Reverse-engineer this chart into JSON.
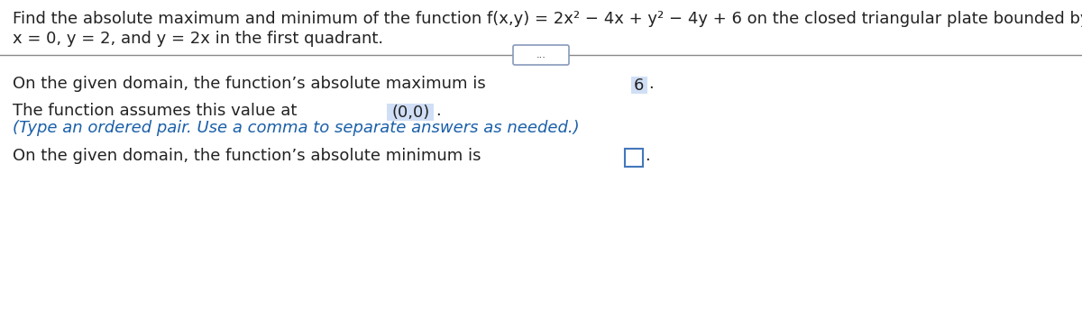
{
  "title_line1": "Find the absolute maximum and minimum of the function f(x,y) = 2x² − 4x + y² − 4y + 6 on the closed triangular plate bounded by the lines",
  "title_line2": "x = 0, y = 2, and y = 2x in the first quadrant.",
  "divider_dots": "...",
  "line1_prefix": "On the given domain, the function’s absolute maximum is ",
  "line1_value": "6",
  "line1_suffix": ".",
  "line2_prefix": "The function assumes this value at ",
  "line2_value": "(0,0)",
  "line2_suffix": ".",
  "line3_blue": "(Type an ordered pair. Use a comma to separate answers as needed.)",
  "line4_prefix": "On the given domain, the function’s absolute minimum is ",
  "line4_suffix": ".",
  "background_color": "#ffffff",
  "text_color": "#222222",
  "blue_color": "#1a5fa8",
  "highlight_color": "#d0dff5",
  "box_border_color": "#4477bb",
  "divider_color": "#888888",
  "dots_border_color": "#8899bb",
  "font_size": 13.0
}
